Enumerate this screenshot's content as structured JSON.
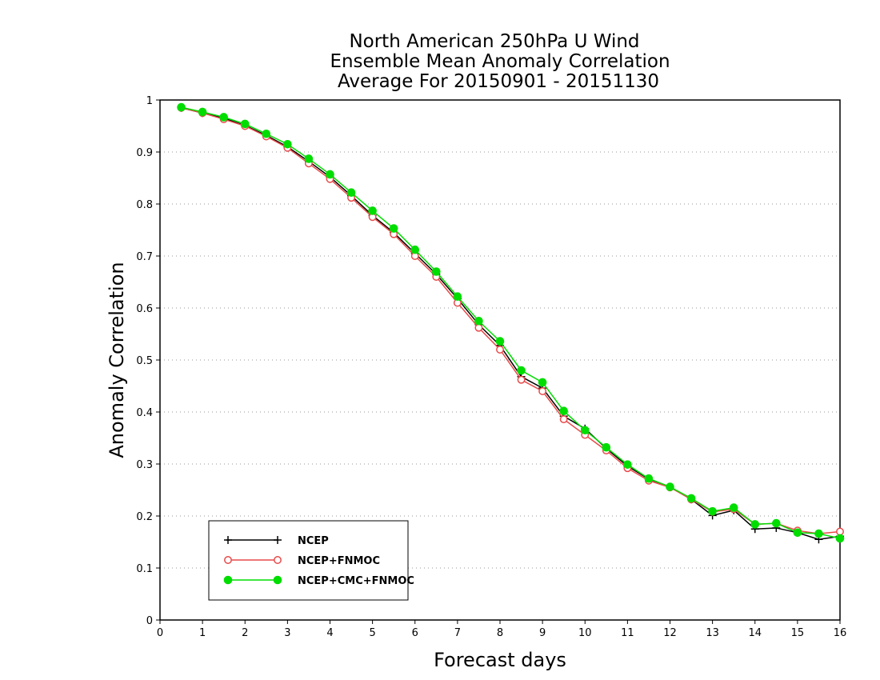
{
  "chart_data": {
    "type": "line",
    "title": [
      "North American 250hPa U Wind",
      "Ensemble Mean Anomaly Correlation",
      "Average For 20150901 - 20151130"
    ],
    "xlabel": "Forecast days",
    "ylabel": "Anomaly Correlation",
    "xlim": [
      0,
      16
    ],
    "ylim": [
      0,
      1
    ],
    "xticks": [
      0,
      1,
      2,
      3,
      4,
      5,
      6,
      7,
      8,
      9,
      10,
      11,
      12,
      13,
      14,
      15,
      16
    ],
    "yticks": [
      0,
      0.1,
      0.2,
      0.3,
      0.4,
      0.5,
      0.6,
      0.7,
      0.8,
      0.9,
      1
    ],
    "grid": "horizontal dotted",
    "legend_position": "bottom-left",
    "x": [
      0.5,
      1,
      1.5,
      2,
      2.5,
      3,
      3.5,
      4,
      4.5,
      5,
      5.5,
      6,
      6.5,
      7,
      7.5,
      8,
      8.5,
      9,
      9.5,
      10,
      10.5,
      11,
      11.5,
      12,
      12.5,
      13,
      13.5,
      14,
      14.5,
      15,
      15.5,
      16
    ],
    "series": [
      {
        "name": "NCEP",
        "color": "#000000",
        "marker": "plus",
        "values": [
          0.985,
          0.975,
          0.965,
          0.951,
          0.932,
          0.91,
          0.882,
          0.852,
          0.816,
          0.778,
          0.745,
          0.705,
          0.665,
          0.618,
          0.568,
          0.528,
          0.468,
          0.446,
          0.392,
          0.368,
          0.33,
          0.296,
          0.271,
          0.256,
          0.232,
          0.201,
          0.211,
          0.175,
          0.177,
          0.168,
          0.155,
          0.161
        ]
      },
      {
        "name": "NCEP+FNMOC",
        "color": "#e84a4a",
        "marker": "open-circle",
        "values": [
          0.985,
          0.975,
          0.963,
          0.95,
          0.93,
          0.908,
          0.878,
          0.848,
          0.812,
          0.775,
          0.742,
          0.7,
          0.66,
          0.61,
          0.562,
          0.52,
          0.462,
          0.44,
          0.386,
          0.356,
          0.326,
          0.292,
          0.268,
          0.255,
          0.232,
          0.208,
          0.213,
          0.184,
          0.186,
          0.172,
          0.166,
          0.17
        ]
      },
      {
        "name": "NCEP+CMC+FNMOC",
        "color": "#00dd00",
        "marker": "filled-circle",
        "values": [
          0.986,
          0.977,
          0.967,
          0.954,
          0.935,
          0.915,
          0.887,
          0.857,
          0.822,
          0.787,
          0.753,
          0.712,
          0.67,
          0.622,
          0.575,
          0.536,
          0.48,
          0.457,
          0.402,
          0.365,
          0.332,
          0.299,
          0.272,
          0.256,
          0.234,
          0.209,
          0.216,
          0.184,
          0.186,
          0.168,
          0.166,
          0.157
        ]
      }
    ]
  }
}
